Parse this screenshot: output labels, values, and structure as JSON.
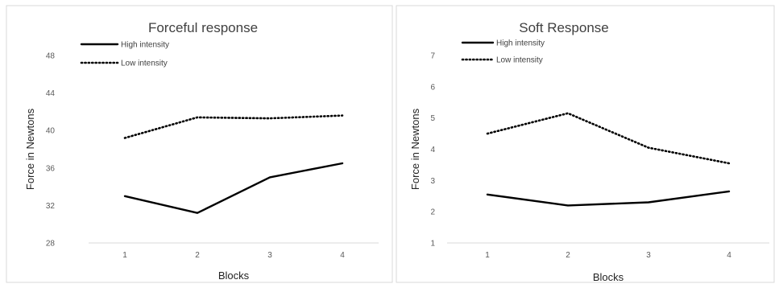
{
  "chart_data": [
    {
      "type": "line",
      "title": "Forceful response",
      "xlabel": "Blocks",
      "ylabel": "Force in Newtons",
      "categories": [
        "1",
        "2",
        "3",
        "4"
      ],
      "yticks": [
        "28",
        "32",
        "36",
        "40",
        "44",
        "48"
      ],
      "ylim": [
        28,
        48
      ],
      "grid": false,
      "legend_position": "top-left",
      "series": [
        {
          "name": "High intensity",
          "style": "solid",
          "color": "#000000",
          "values": [
            33.0,
            31.2,
            35.0,
            36.5
          ]
        },
        {
          "name": "Low intensity",
          "style": "dotted",
          "color": "#000000",
          "values": [
            39.2,
            41.4,
            41.3,
            41.6
          ]
        }
      ]
    },
    {
      "type": "line",
      "title": "Soft Response",
      "xlabel": "Blocks",
      "ylabel": "Force in Newtons",
      "categories": [
        "1",
        "2",
        "3",
        "4"
      ],
      "yticks": [
        "1",
        "2",
        "3",
        "4",
        "5",
        "6",
        "7"
      ],
      "ylim": [
        1,
        7
      ],
      "grid": false,
      "legend_position": "top-left",
      "series": [
        {
          "name": "High intensity",
          "style": "solid",
          "color": "#000000",
          "values": [
            2.55,
            2.2,
            2.3,
            2.65
          ]
        },
        {
          "name": "Low intensity",
          "style": "dotted",
          "color": "#000000",
          "values": [
            4.5,
            5.15,
            4.05,
            3.55
          ]
        }
      ]
    }
  ]
}
